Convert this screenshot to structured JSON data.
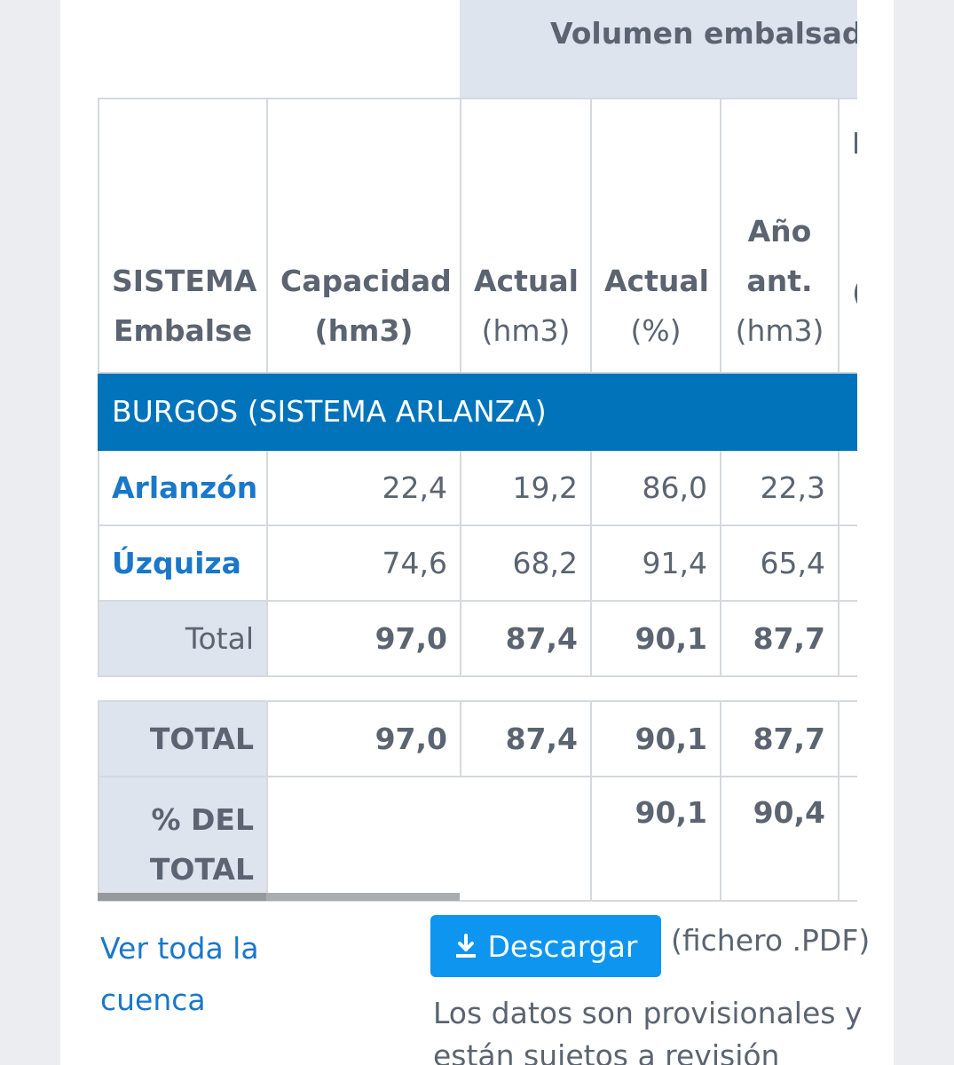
{
  "table": {
    "top_header": "Volumen embalsado",
    "columns": [
      {
        "line1": "SISTEMA",
        "line2": "Embalse"
      },
      {
        "line1": "Capacidad",
        "line2": "(hm3)"
      },
      {
        "line1": "Actual",
        "line2": "(hm3)"
      },
      {
        "line1": "Actual",
        "line2": "(%)"
      },
      {
        "line1": "Año",
        "line2": "ant.",
        "line3": "(hm3)"
      },
      {
        "line1": "I",
        "line2": "("
      }
    ],
    "group": "BURGOS (SISTEMA ARLANZA)",
    "rows": [
      {
        "name": "Arlanzón",
        "capacidad": "22,4",
        "actual_hm3": "19,2",
        "actual_pct": "86,0",
        "ano_ant": "22,3"
      },
      {
        "name": "Úzquiza",
        "capacidad": "74,6",
        "actual_hm3": "68,2",
        "actual_pct": "91,4",
        "ano_ant": "65,4"
      }
    ],
    "subtotal": {
      "label": "Total",
      "capacidad": "97,0",
      "actual_hm3": "87,4",
      "actual_pct": "90,1",
      "ano_ant": "87,7"
    },
    "total": {
      "label": "TOTAL",
      "capacidad": "97,0",
      "actual_hm3": "87,4",
      "actual_pct": "90,1",
      "ano_ant": "87,7"
    },
    "pct_total": {
      "label_line1": "% DEL",
      "label_line2": "TOTAL",
      "actual_pct": "90,1",
      "ano_ant": "90,4"
    }
  },
  "footer": {
    "link_line1": "Ver toda la",
    "link_line2": "cuenca",
    "download_label": "Descargar",
    "download_icon": "download-icon",
    "file_note": "(fichero .PDF)",
    "disclaimer_line1": "Los datos son provisionales y",
    "disclaimer_line2": "están sujetos a revisión"
  },
  "colors": {
    "accent_blue": "#0073bb",
    "button_blue": "#0d95ef",
    "link_blue": "#1a77c9",
    "header_bg": "#dde4ee"
  }
}
